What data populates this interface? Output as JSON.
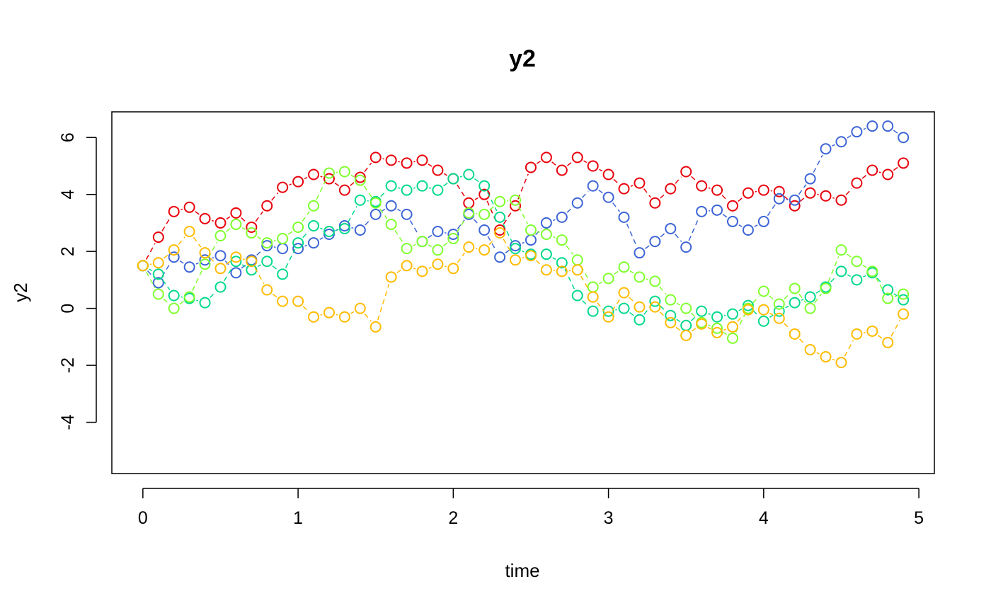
{
  "chart_data": {
    "type": "scatter",
    "title": "y2",
    "xlabel": "time",
    "ylabel": "y2",
    "xlim": [
      -0.2,
      5.1
    ],
    "ylim": [
      -5.8,
      6.9
    ],
    "xticks": [
      0,
      1,
      2,
      3,
      4,
      5
    ],
    "xtick_labels": [
      "0",
      "1",
      "2",
      "3",
      "4",
      "5"
    ],
    "yticks": [
      -4,
      -2,
      0,
      2,
      4,
      6
    ],
    "ytick_labels": [
      "-4",
      "-2",
      "0",
      "2",
      "4",
      "6"
    ],
    "grid": false,
    "legend": "none",
    "x": [
      0,
      0.1,
      0.2,
      0.3,
      0.4,
      0.5,
      0.6,
      0.7,
      0.8,
      0.9,
      1.0,
      1.1,
      1.2,
      1.3,
      1.4,
      1.5,
      1.6,
      1.7,
      1.8,
      1.9,
      2.0,
      2.1,
      2.2,
      2.3,
      2.4,
      2.5,
      2.6,
      2.7,
      2.8,
      2.9,
      3.0,
      3.1,
      3.2,
      3.3,
      3.4,
      3.5,
      3.6,
      3.7,
      3.8,
      3.9,
      4.0,
      4.1,
      4.2,
      4.3,
      4.4,
      4.5,
      4.6,
      4.7,
      4.8,
      4.9
    ],
    "series": [
      {
        "color": "#e8000b",
        "values": [
          1.5,
          2.5,
          3.4,
          3.55,
          3.15,
          3.0,
          3.35,
          2.85,
          3.6,
          4.25,
          4.45,
          4.7,
          4.55,
          4.15,
          4.6,
          5.3,
          5.2,
          5.1,
          5.2,
          4.85,
          4.55,
          3.7,
          4.0,
          2.75,
          3.6,
          4.95,
          5.3,
          4.85,
          5.3,
          5.0,
          4.7,
          4.2,
          4.4,
          3.7,
          4.2,
          4.8,
          4.3,
          4.15,
          3.6,
          4.05,
          4.15,
          4.1,
          3.6,
          4.05,
          3.95,
          3.8,
          4.4,
          4.85,
          4.7,
          5.1
        ]
      },
      {
        "color": "#3d65d6",
        "values": [
          1.5,
          0.9,
          1.8,
          1.45,
          1.7,
          1.85,
          1.25,
          1.7,
          2.2,
          2.1,
          2.1,
          2.3,
          2.6,
          2.9,
          2.75,
          3.3,
          3.6,
          3.3,
          2.35,
          2.7,
          2.6,
          3.3,
          2.75,
          1.8,
          2.2,
          2.4,
          3.0,
          3.2,
          3.7,
          4.3,
          3.9,
          3.2,
          1.95,
          2.35,
          2.8,
          2.15,
          3.4,
          3.45,
          3.05,
          2.75,
          3.05,
          3.85,
          3.8,
          4.55,
          5.6,
          5.85,
          6.2,
          6.4,
          6.4,
          6.0
        ]
      },
      {
        "color": "#00d98b",
        "values": [
          1.5,
          1.2,
          0.45,
          0.35,
          0.2,
          0.75,
          1.65,
          1.35,
          1.65,
          1.2,
          2.3,
          2.9,
          2.7,
          2.8,
          3.8,
          3.75,
          4.3,
          4.15,
          4.3,
          4.15,
          4.55,
          4.7,
          4.3,
          3.2,
          2.1,
          1.9,
          1.9,
          1.6,
          0.45,
          -0.1,
          -0.1,
          0.0,
          -0.4,
          0.25,
          -0.25,
          -0.6,
          -0.1,
          -0.3,
          -0.2,
          0.1,
          -0.45,
          -0.1,
          0.2,
          0.4,
          0.75,
          1.3,
          1.0,
          1.25,
          0.65,
          0.3
        ]
      },
      {
        "color": "#80ff2e",
        "values": [
          1.5,
          0.5,
          0.0,
          0.4,
          1.55,
          2.55,
          2.95,
          2.65,
          2.3,
          2.45,
          2.85,
          3.6,
          4.75,
          4.8,
          4.5,
          3.7,
          2.95,
          2.1,
          2.35,
          2.05,
          2.45,
          3.35,
          3.3,
          3.75,
          3.8,
          2.75,
          2.6,
          2.4,
          1.7,
          0.75,
          1.05,
          1.45,
          1.1,
          0.95,
          0.3,
          0.0,
          -0.5,
          -0.7,
          -1.05,
          0.0,
          0.6,
          0.15,
          0.7,
          0.0,
          0.7,
          2.05,
          1.65,
          1.3,
          0.35,
          0.5
        ]
      },
      {
        "color": "#ffbb00",
        "values": [
          1.5,
          1.6,
          2.05,
          2.7,
          1.95,
          1.4,
          1.8,
          1.65,
          0.65,
          0.25,
          0.25,
          -0.3,
          -0.15,
          -0.3,
          0.0,
          -0.65,
          1.1,
          1.5,
          1.3,
          1.55,
          1.4,
          2.15,
          2.05,
          2.65,
          1.7,
          1.85,
          1.35,
          1.3,
          1.35,
          0.4,
          -0.3,
          0.55,
          0.05,
          0.05,
          -0.5,
          -0.95,
          -0.55,
          -0.85,
          -0.65,
          -0.05,
          -0.05,
          -0.35,
          -0.9,
          -1.45,
          -1.7,
          -1.9,
          -0.9,
          -0.8,
          -1.2,
          -0.2
        ]
      }
    ]
  }
}
